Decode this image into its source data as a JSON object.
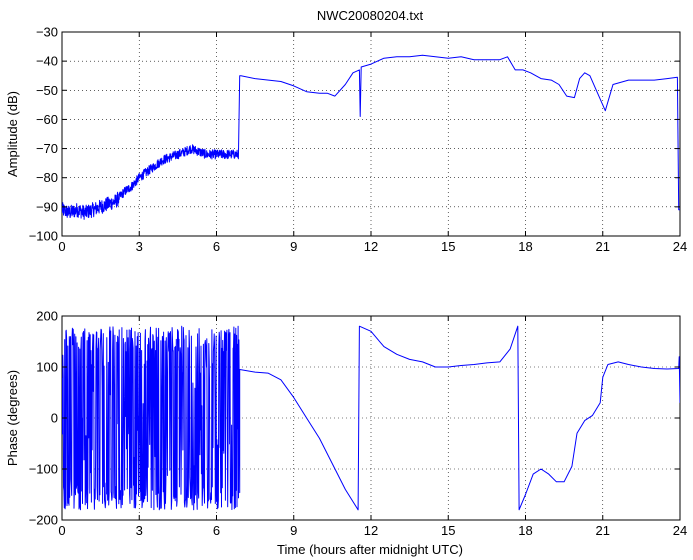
{
  "figure": {
    "title": "NWC20080204.txt",
    "xlabel": "Time (hours after midnight UTC)"
  },
  "chart_data": [
    {
      "type": "line",
      "title": "NWC20080204.txt",
      "xlabel": "",
      "ylabel": "Amplitude (dB)",
      "xlim": [
        0,
        24
      ],
      "ylim": [
        -100,
        -30
      ],
      "xticks": [
        0,
        3,
        6,
        9,
        12,
        15,
        18,
        21,
        24
      ],
      "yticks": [
        -100,
        -90,
        -80,
        -70,
        -60,
        -50,
        -40,
        -30
      ],
      "grid": true,
      "color": "#0000ff",
      "noise": [
        {
          "x_from": 0,
          "x_to": 6.9,
          "amplitude": 2.5
        },
        {
          "x_from": 0,
          "x_to": 2.2,
          "amplitude": 2.5
        }
      ],
      "series": [
        {
          "points": [
            [
              0,
              -91
            ],
            [
              0.3,
              -92
            ],
            [
              0.6,
              -91
            ],
            [
              0.9,
              -92
            ],
            [
              1.2,
              -91
            ],
            [
              1.5,
              -90
            ],
            [
              1.8,
              -89
            ],
            [
              2.1,
              -88
            ],
            [
              2.4,
              -85
            ],
            [
              2.7,
              -83
            ],
            [
              3.0,
              -80
            ],
            [
              3.3,
              -78
            ],
            [
              3.6,
              -76
            ],
            [
              3.9,
              -74
            ],
            [
              4.2,
              -73
            ],
            [
              4.5,
              -72
            ],
            [
              4.8,
              -71
            ],
            [
              5.0,
              -70
            ],
            [
              5.3,
              -71
            ],
            [
              5.6,
              -72
            ],
            [
              5.9,
              -72
            ],
            [
              6.2,
              -72
            ],
            [
              6.5,
              -72
            ],
            [
              6.85,
              -72
            ],
            [
              6.9,
              -45
            ],
            [
              6.95,
              -45
            ],
            [
              7.5,
              -46
            ],
            [
              8.5,
              -47
            ],
            [
              9.0,
              -48.5
            ],
            [
              9.5,
              -50.5
            ],
            [
              10.0,
              -51
            ],
            [
              10.3,
              -51
            ],
            [
              10.6,
              -52
            ],
            [
              11.0,
              -48
            ],
            [
              11.3,
              -44
            ],
            [
              11.55,
              -43
            ],
            [
              11.58,
              -59
            ],
            [
              11.62,
              -42
            ],
            [
              12.0,
              -41
            ],
            [
              12.5,
              -39
            ],
            [
              13.0,
              -38.5
            ],
            [
              13.5,
              -38.5
            ],
            [
              14.0,
              -38
            ],
            [
              14.5,
              -38.5
            ],
            [
              15.0,
              -39
            ],
            [
              15.5,
              -38.5
            ],
            [
              16.0,
              -39.5
            ],
            [
              16.5,
              -39.5
            ],
            [
              17.0,
              -39.5
            ],
            [
              17.3,
              -38.5
            ],
            [
              17.6,
              -43
            ],
            [
              17.9,
              -43
            ],
            [
              18.2,
              -44
            ],
            [
              18.6,
              -46
            ],
            [
              19.0,
              -46.5
            ],
            [
              19.3,
              -48
            ],
            [
              19.6,
              -52
            ],
            [
              19.9,
              -52.5
            ],
            [
              20.1,
              -46
            ],
            [
              20.3,
              -44
            ],
            [
              20.5,
              -45
            ],
            [
              20.8,
              -51
            ],
            [
              21.1,
              -57
            ],
            [
              21.4,
              -48
            ],
            [
              22.0,
              -46.5
            ],
            [
              22.5,
              -46.5
            ],
            [
              23.0,
              -46.5
            ],
            [
              23.5,
              -46
            ],
            [
              23.9,
              -45.5
            ],
            [
              23.95,
              -91
            ],
            [
              24.0,
              -91
            ]
          ]
        }
      ]
    },
    {
      "type": "line",
      "title": "",
      "xlabel": "Time (hours after midnight UTC)",
      "ylabel": "Phase (degrees)",
      "xlim": [
        0,
        24
      ],
      "ylim": [
        -200,
        200
      ],
      "xticks": [
        0,
        3,
        6,
        9,
        12,
        15,
        18,
        21,
        24
      ],
      "yticks": [
        -200,
        -100,
        0,
        100,
        200
      ],
      "grid": true,
      "color": "#0000ff",
      "random_segment": {
        "x_from": 0,
        "x_to": 6.9,
        "min": -180,
        "max": 180
      },
      "series": [
        {
          "points": [
            [
              6.9,
              95
            ],
            [
              7.5,
              90
            ],
            [
              8.0,
              88
            ],
            [
              8.5,
              75
            ],
            [
              9.0,
              40
            ],
            [
              9.5,
              0
            ],
            [
              10.0,
              -40
            ],
            [
              10.5,
              -90
            ],
            [
              11.0,
              -140
            ],
            [
              11.5,
              -180
            ],
            [
              11.55,
              180
            ],
            [
              12.0,
              170
            ],
            [
              12.5,
              140
            ],
            [
              13.0,
              125
            ],
            [
              13.5,
              115
            ],
            [
              14.0,
              110
            ],
            [
              14.5,
              100
            ],
            [
              15.0,
              100
            ],
            [
              15.5,
              103
            ],
            [
              16.0,
              105
            ],
            [
              16.5,
              108
            ],
            [
              17.0,
              110
            ],
            [
              17.4,
              135
            ],
            [
              17.7,
              180
            ],
            [
              17.75,
              -180
            ],
            [
              18.0,
              -150
            ],
            [
              18.3,
              -110
            ],
            [
              18.6,
              -100
            ],
            [
              18.9,
              -110
            ],
            [
              19.2,
              -125
            ],
            [
              19.5,
              -125
            ],
            [
              19.8,
              -95
            ],
            [
              20.0,
              -30
            ],
            [
              20.3,
              -5
            ],
            [
              20.6,
              5
            ],
            [
              20.9,
              30
            ],
            [
              21.0,
              80
            ],
            [
              21.2,
              105
            ],
            [
              21.6,
              110
            ],
            [
              22.0,
              105
            ],
            [
              22.5,
              100
            ],
            [
              23.0,
              97
            ],
            [
              23.5,
              96
            ],
            [
              23.95,
              97
            ],
            [
              23.97,
              120
            ],
            [
              24.0,
              30
            ]
          ]
        }
      ]
    }
  ]
}
